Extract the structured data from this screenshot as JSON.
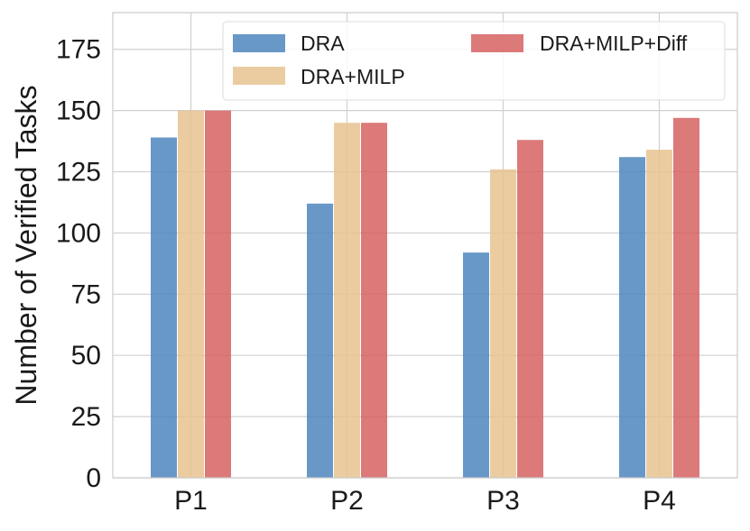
{
  "chart_data": {
    "type": "bar",
    "title": "",
    "xlabel": "",
    "ylabel": "Number of Verified Tasks",
    "categories": [
      "P1",
      "P2",
      "P3",
      "P4"
    ],
    "series": [
      {
        "name": "DRA",
        "values": [
          139,
          112,
          92,
          131
        ],
        "color": "#4e86be"
      },
      {
        "name": "DRA+MILP",
        "values": [
          150,
          145,
          126,
          134
        ],
        "color": "#e8c391"
      },
      {
        "name": "DRA+MILP+Diff",
        "values": [
          150,
          145,
          138,
          147
        ],
        "color": "#d66162"
      }
    ],
    "ylim": [
      0,
      190
    ],
    "yticks": [
      0,
      25,
      50,
      75,
      100,
      125,
      150,
      175
    ],
    "grid": true,
    "legend": {
      "position": "top-right",
      "columns": 2
    }
  }
}
